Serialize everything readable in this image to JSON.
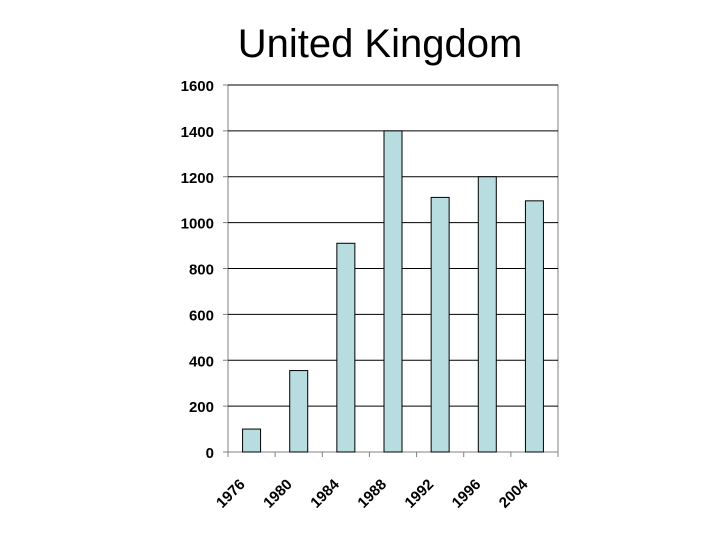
{
  "chart_data": {
    "type": "bar",
    "title": "United Kingdom",
    "xlabel": "",
    "ylabel": "",
    "categories": [
      "1976",
      "1980",
      "1984",
      "1988",
      "1992",
      "1996",
      "2004"
    ],
    "values": [
      100,
      355,
      910,
      1400,
      1110,
      1200,
      1095
    ],
    "ylim": [
      0,
      1600
    ],
    "yticks": [
      "0",
      "200",
      "400",
      "600",
      "800",
      "1000",
      "1200",
      "1400",
      "1600"
    ],
    "grid": true,
    "legend": "none",
    "colors": {
      "bar_fill": "#b8dde0",
      "bar_stroke": "#000000",
      "grid": "#000000",
      "axis": "#808080"
    }
  }
}
